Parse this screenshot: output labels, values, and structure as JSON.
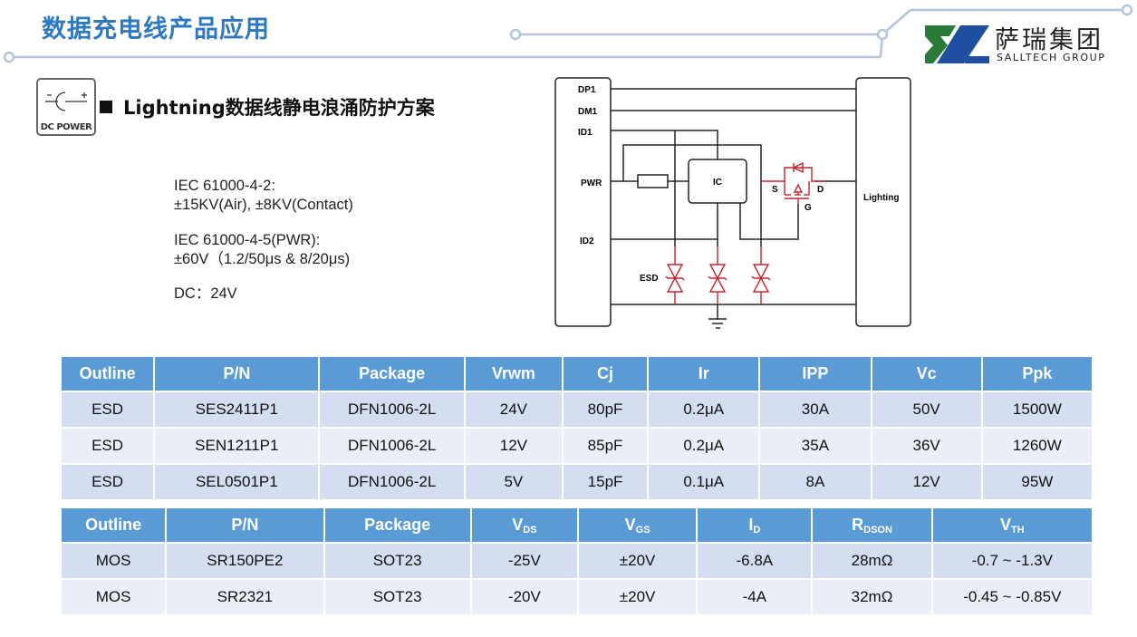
{
  "header": {
    "title": "数据充电线产品应用",
    "logo_cn": "萨瑞集团",
    "logo_en": "SALLTECH GROUP",
    "accent": "#2E78C2"
  },
  "section": {
    "icon": "dc-power-icon",
    "icon_label": "DC POWER",
    "title": "Lightning数据线静电浪涌防护方案"
  },
  "specs": {
    "esd_std": "IEC 61000-4-2:",
    "esd_val": "±15KV(Air), ±8KV(Contact)",
    "surge_std": "IEC 61000-4-5(PWR):",
    "surge_val": "±60V（1.2/50μs & 8/20μs)",
    "dc": "DC：24V"
  },
  "diagram": {
    "pins": [
      "DP1",
      "DM1",
      "ID1",
      "PWR",
      "ID2"
    ],
    "ic": "IC",
    "esd": "ESD",
    "s": "S",
    "d": "D",
    "g": "G",
    "right": "Lighting"
  },
  "esd_table": {
    "headers": [
      "Outline",
      "P/N",
      "Package",
      "Vrwm",
      "Cj",
      "Ir",
      "IPP",
      "Vc",
      "Ppk"
    ],
    "rows": [
      [
        "ESD",
        "SES2411P1",
        "DFN1006-2L",
        "24V",
        "80pF",
        "0.2μA",
        "30A",
        "50V",
        "1500W"
      ],
      [
        "ESD",
        "SEN1211P1",
        "DFN1006-2L",
        "12V",
        "85pF",
        "0.2μA",
        "35A",
        "36V",
        "1260W"
      ],
      [
        "ESD",
        "SEL0501P1",
        "DFN1006-2L",
        "5V",
        "15pF",
        "0.1μA",
        "8A",
        "12V",
        "95W"
      ]
    ]
  },
  "mos_table": {
    "headers": [
      [
        "Outline",
        ""
      ],
      [
        "P/N",
        ""
      ],
      [
        "Package",
        ""
      ],
      [
        "V",
        "DS"
      ],
      [
        "V",
        "GS"
      ],
      [
        "I",
        "D"
      ],
      [
        "R",
        "DSON"
      ],
      [
        "V",
        "TH"
      ]
    ],
    "rows": [
      [
        "MOS",
        "SR150PE2",
        "SOT23",
        "-25V",
        "±20V",
        "-6.8A",
        "28mΩ",
        "-0.7 ~ -1.3V"
      ],
      [
        "MOS",
        "SR2321",
        "SOT23",
        "-20V",
        "±20V",
        "-4A",
        "32mΩ",
        "-0.45 ~ -0.85V"
      ]
    ]
  },
  "colors": {
    "table_header": "#5B9BD5",
    "row_dark": "#D3DEF0",
    "row_light": "#EAEFF7",
    "esd_red": "#C0272D"
  }
}
